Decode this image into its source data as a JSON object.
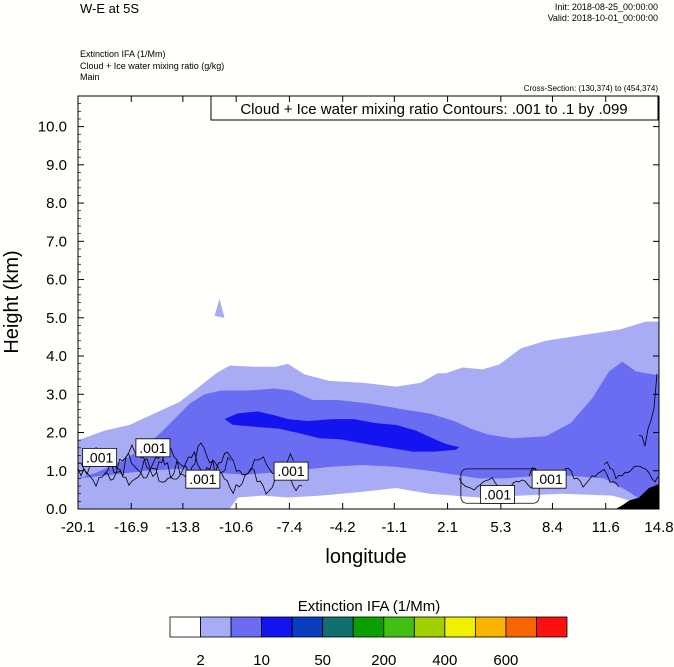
{
  "header": {
    "title": "W-E at 5S",
    "init": "Init: 2018-08-25_00:00:00",
    "valid": "Valid: 2018-10-01_00:00:00",
    "field1": "Extinction IFA   (1/Mm)",
    "field2": "Cloud + Ice water mixing ratio   (g/kg)",
    "field3": "Main",
    "cross_section": "Cross-Section: (130,374) to (454,374)"
  },
  "colors": {
    "background": "#fffffb",
    "levels": [
      "#ffffff",
      "#a8acf4",
      "#6a6cf2",
      "#1414f0",
      "#0a3cc0",
      "#107070",
      "#0aa000",
      "#40c010",
      "#a0d000",
      "#f0f000",
      "#f8b400",
      "#f86400",
      "#ff1010"
    ],
    "fill_very_light": "#a8acf4",
    "fill_light": "#6a6cf2",
    "fill_dark": "#1414f0",
    "terrain": "#000000"
  },
  "chart_data": {
    "type": "heatmap",
    "title": "Cloud + Ice water mixing ratio Contours: .001 to .1 by .099",
    "xlabel": "longitude",
    "ylabel": "Height (km)",
    "x_ticks": [
      "-20.1",
      "-16.9",
      "-13.8",
      "-10.6",
      "-7.4",
      "-4.2",
      "-1.1",
      "2.1",
      "5.3",
      "8.4",
      "11.6",
      "14.8"
    ],
    "x_tick_values": [
      -20.1,
      -16.9,
      -13.8,
      -10.6,
      -7.4,
      -4.2,
      -1.1,
      2.1,
      5.3,
      8.4,
      11.6,
      14.8
    ],
    "xlim": [
      -20.1,
      14.8
    ],
    "y_ticks": [
      "0.0",
      "1.0",
      "2.0",
      "3.0",
      "4.0",
      "5.0",
      "6.0",
      "7.0",
      "8.0",
      "9.0",
      "10.0"
    ],
    "y_tick_values": [
      0,
      1,
      2,
      3,
      4,
      5,
      6,
      7,
      8,
      9,
      10
    ],
    "ylim": [
      0,
      10.8
    ],
    "colorbar": {
      "title": "Extinction IFA  (1/Mm)",
      "labels": [
        "2",
        "10",
        "50",
        "200",
        "400",
        "600"
      ],
      "n_levels": 13
    },
    "contour_labels": [
      {
        "text": ".001",
        "x": -18.8,
        "y": 1.35
      },
      {
        "text": ".001",
        "x": -15.6,
        "y": 1.6
      },
      {
        "text": ".001",
        "x": -12.6,
        "y": 0.78
      },
      {
        "text": ".001",
        "x": -7.3,
        "y": 0.99
      },
      {
        "text": ".001",
        "x": 5.1,
        "y": 0.38
      },
      {
        "text": ".001",
        "x": 8.2,
        "y": 0.78
      }
    ],
    "regions": {
      "very_light": [
        [
          -20.1,
          0
        ],
        [
          -20.1,
          1.8
        ],
        [
          -18.5,
          2.05
        ],
        [
          -17.0,
          2.2
        ],
        [
          -15.5,
          2.5
        ],
        [
          -14.0,
          2.8
        ],
        [
          -12.8,
          3.2
        ],
        [
          -11.8,
          3.55
        ],
        [
          -11.0,
          3.75
        ],
        [
          -9.5,
          3.72
        ],
        [
          -8.2,
          3.72
        ],
        [
          -7.5,
          3.8
        ],
        [
          -6.5,
          3.52
        ],
        [
          -5.0,
          3.35
        ],
        [
          -3.0,
          3.3
        ],
        [
          -1.0,
          3.2
        ],
        [
          0.5,
          3.3
        ],
        [
          1.5,
          3.55
        ],
        [
          2.0,
          3.55
        ],
        [
          3.0,
          3.7
        ],
        [
          4.2,
          3.65
        ],
        [
          5.2,
          3.78
        ],
        [
          6.5,
          4.2
        ],
        [
          8.0,
          4.4
        ],
        [
          9.5,
          4.5
        ],
        [
          11.0,
          4.6
        ],
        [
          12.5,
          4.7
        ],
        [
          14.0,
          4.9
        ],
        [
          14.8,
          4.9
        ],
        [
          14.8,
          0
        ],
        [
          12.0,
          0.35
        ],
        [
          9.0,
          0.4
        ],
        [
          6.5,
          0.35
        ],
        [
          4.0,
          0.3
        ],
        [
          1.0,
          0.4
        ],
        [
          -1.0,
          0.55
        ],
        [
          -3.0,
          0.45
        ],
        [
          -5.5,
          0.35
        ],
        [
          -7.5,
          0.3
        ],
        [
          -9.0,
          0.35
        ],
        [
          -10.5,
          0.3
        ],
        [
          -11.0,
          0
        ]
      ],
      "light": [
        [
          -20.1,
          0.8
        ],
        [
          -19.0,
          0.95
        ],
        [
          -17.5,
          1.25
        ],
        [
          -16.0,
          1.65
        ],
        [
          -15.0,
          2.05
        ],
        [
          -14.2,
          2.4
        ],
        [
          -13.4,
          2.75
        ],
        [
          -12.5,
          3.0
        ],
        [
          -11.5,
          3.1
        ],
        [
          -9.8,
          3.1
        ],
        [
          -8.3,
          3.15
        ],
        [
          -7.3,
          3.1
        ],
        [
          -6.0,
          2.85
        ],
        [
          -4.5,
          2.85
        ],
        [
          -2.5,
          2.75
        ],
        [
          -0.5,
          2.6
        ],
        [
          1.0,
          2.5
        ],
        [
          2.5,
          2.3
        ],
        [
          3.5,
          2.1
        ],
        [
          4.5,
          1.95
        ],
        [
          6.0,
          1.85
        ],
        [
          8.0,
          1.9
        ],
        [
          9.5,
          2.25
        ],
        [
          10.8,
          2.9
        ],
        [
          11.8,
          3.6
        ],
        [
          12.6,
          3.85
        ],
        [
          13.4,
          3.6
        ],
        [
          14.0,
          3.55
        ],
        [
          14.8,
          3.5
        ],
        [
          14.8,
          0.3
        ],
        [
          13.5,
          0.3
        ],
        [
          12.8,
          0.5
        ],
        [
          11.5,
          0.8
        ],
        [
          10.0,
          0.85
        ],
        [
          8.5,
          0.9
        ],
        [
          7.0,
          0.85
        ],
        [
          5.5,
          0.8
        ],
        [
          4.0,
          0.8
        ],
        [
          2.5,
          0.9
        ],
        [
          1.0,
          1.0
        ],
        [
          -1.0,
          1.1
        ],
        [
          -3.0,
          1.15
        ],
        [
          -5.0,
          1.1
        ],
        [
          -7.0,
          1.0
        ],
        [
          -8.5,
          0.95
        ],
        [
          -10.0,
          0.9
        ],
        [
          -12.0,
          0.95
        ],
        [
          -14.0,
          1.05
        ],
        [
          -16.0,
          1.0
        ],
        [
          -18.0,
          0.9
        ]
      ],
      "dark": [
        [
          -11.3,
          2.35
        ],
        [
          -10.5,
          2.5
        ],
        [
          -9.3,
          2.55
        ],
        [
          -8.3,
          2.45
        ],
        [
          -7.5,
          2.35
        ],
        [
          -6.3,
          2.3
        ],
        [
          -4.8,
          2.35
        ],
        [
          -3.5,
          2.35
        ],
        [
          -2.3,
          2.25
        ],
        [
          -1.0,
          2.2
        ],
        [
          0.2,
          2.05
        ],
        [
          1.2,
          1.85
        ],
        [
          2.0,
          1.7
        ],
        [
          2.8,
          1.62
        ],
        [
          2.6,
          1.55
        ],
        [
          1.3,
          1.5
        ],
        [
          0.0,
          1.5
        ],
        [
          -1.4,
          1.6
        ],
        [
          -2.8,
          1.7
        ],
        [
          -4.3,
          1.82
        ],
        [
          -5.6,
          1.85
        ],
        [
          -6.8,
          1.98
        ],
        [
          -8.0,
          2.1
        ],
        [
          -9.5,
          2.15
        ],
        [
          -10.8,
          2.2
        ]
      ],
      "isolated_spots": [
        [
          -11.9,
          5.05
        ],
        [
          -11.6,
          5.5
        ],
        [
          -11.3,
          5.0
        ]
      ],
      "terrain": [
        [
          12.2,
          0
        ],
        [
          12.6,
          0.1
        ],
        [
          13.0,
          0.22
        ],
        [
          13.6,
          0.3
        ],
        [
          14.2,
          0.55
        ],
        [
          14.8,
          0.65
        ],
        [
          14.8,
          0
        ]
      ]
    }
  }
}
